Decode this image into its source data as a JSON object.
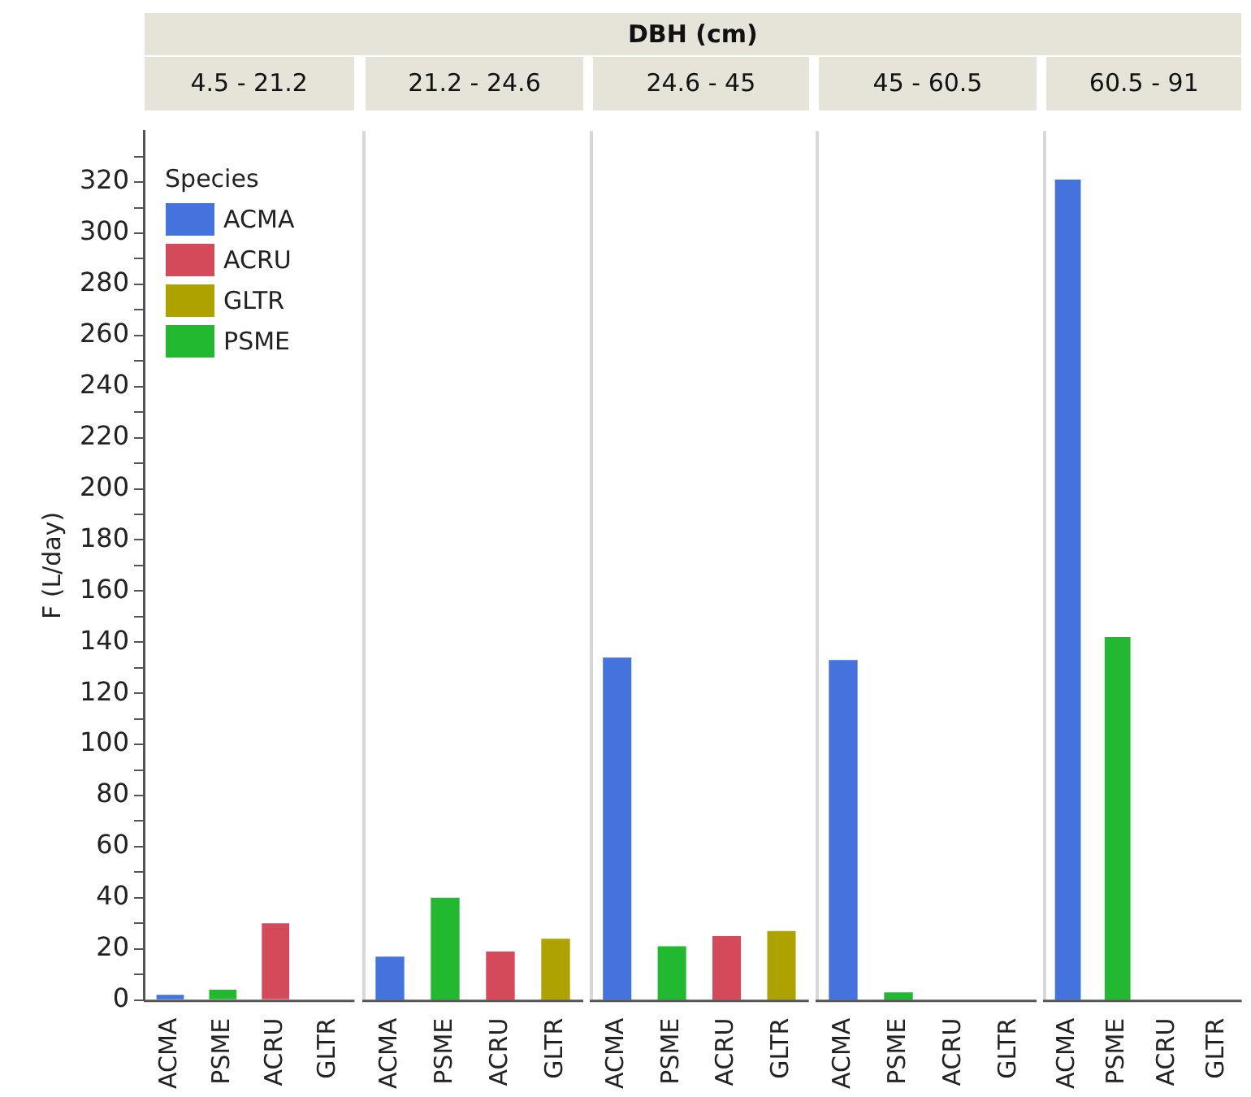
{
  "chart_data": [
    {
      "type": "bar",
      "title": "4.5 - 21.2",
      "annotations": [
        "DBH (cm)"
      ],
      "ylabel": "F (L/day)",
      "legend_title": "Species",
      "legend": "top left",
      "stacked": true,
      "grid": false,
      "categories": [
        "ACMA",
        "PSME",
        "ACRU",
        "GLTR"
      ],
      "ylim": [
        0,
        340
      ],
      "yticks": [
        0,
        {
          "value": 10,
          "label": null
        },
        20,
        {
          "value": 30,
          "label": null
        },
        40,
        {
          "value": 50,
          "label": null
        },
        60,
        {
          "value": 70,
          "label": null
        },
        80,
        {
          "value": 90,
          "label": null
        },
        100,
        {
          "value": 110,
          "label": null
        },
        120,
        {
          "value": 130,
          "label": null
        },
        140,
        {
          "value": 150,
          "label": null
        },
        160,
        {
          "value": 170,
          "label": null
        },
        180,
        {
          "value": 190,
          "label": null
        },
        200,
        {
          "value": 210,
          "label": null
        },
        220,
        {
          "value": 230,
          "label": null
        },
        240,
        {
          "value": 250,
          "label": null
        },
        260,
        {
          "value": 270,
          "label": null
        },
        280,
        {
          "value": 290,
          "label": null
        },
        300,
        {
          "value": 310,
          "label": null
        },
        320,
        {
          "value": 330,
          "label": null
        }
      ],
      "series": [
        {
          "name": "ACMA",
          "color": "#4473de",
          "values": [
            2,
            null,
            null,
            null
          ]
        },
        {
          "name": "ACRU",
          "color": "#d54a5a",
          "values": [
            null,
            null,
            30,
            null
          ]
        },
        {
          "name": "GLTR",
          "color": "#ada200",
          "values": [
            null,
            null,
            null,
            null
          ]
        },
        {
          "name": "PSME",
          "color": "#22b930",
          "values": [
            null,
            4,
            null,
            null
          ]
        }
      ]
    },
    {
      "type": "bar",
      "title": "21.2 - 24.6",
      "stacked": true,
      "grid": false,
      "tick_labels": "x",
      "categories": [
        "ACMA",
        "PSME",
        "ACRU",
        "GLTR"
      ],
      "ylim": [
        0,
        340
      ],
      "series": [
        {
          "color": "#4473de",
          "values": [
            17,
            null,
            null,
            null
          ]
        },
        {
          "color": "#d54a5a",
          "values": [
            null,
            null,
            19,
            null
          ]
        },
        {
          "color": "#ada200",
          "values": [
            null,
            null,
            null,
            24
          ]
        },
        {
          "color": "#22b930",
          "values": [
            null,
            40,
            null,
            null
          ]
        }
      ]
    },
    {
      "type": "bar",
      "title": "24.6 - 45",
      "stacked": true,
      "grid": false,
      "tick_labels": "x",
      "categories": [
        "ACMA",
        "PSME",
        "ACRU",
        "GLTR"
      ],
      "ylim": [
        0,
        340
      ],
      "series": [
        {
          "color": "#4473de",
          "values": [
            134,
            null,
            null,
            null
          ]
        },
        {
          "color": "#d54a5a",
          "values": [
            null,
            null,
            25,
            null
          ]
        },
        {
          "color": "#ada200",
          "values": [
            null,
            null,
            null,
            27
          ]
        },
        {
          "color": "#22b930",
          "values": [
            null,
            21,
            null,
            null
          ]
        }
      ]
    },
    {
      "type": "bar",
      "title": "45 - 60.5",
      "stacked": true,
      "grid": false,
      "tick_labels": "x",
      "categories": [
        "ACMA",
        "PSME",
        "ACRU",
        "GLTR"
      ],
      "ylim": [
        0,
        340
      ],
      "series": [
        {
          "color": "#4473de",
          "values": [
            133,
            null,
            null,
            null
          ]
        },
        {
          "color": "#d54a5a",
          "values": [
            null,
            null,
            null,
            null
          ]
        },
        {
          "color": "#ada200",
          "values": [
            null,
            null,
            null,
            null
          ]
        },
        {
          "color": "#22b930",
          "values": [
            null,
            3,
            null,
            null
          ]
        }
      ]
    },
    {
      "type": "bar",
      "title": "60.5 - 91",
      "stacked": true,
      "grid": false,
      "tick_labels": "x",
      "categories": [
        "ACMA",
        "PSME",
        "ACRU",
        "GLTR"
      ],
      "ylim": [
        0,
        340
      ],
      "series": [
        {
          "color": "#4473de",
          "values": [
            321,
            null,
            null,
            null
          ]
        },
        {
          "color": "#d54a5a",
          "values": [
            null,
            null,
            null,
            null
          ]
        },
        {
          "color": "#ada200",
          "values": [
            null,
            null,
            null,
            null
          ]
        },
        {
          "color": "#22b930",
          "values": [
            null,
            142,
            null,
            null
          ]
        }
      ]
    }
  ]
}
